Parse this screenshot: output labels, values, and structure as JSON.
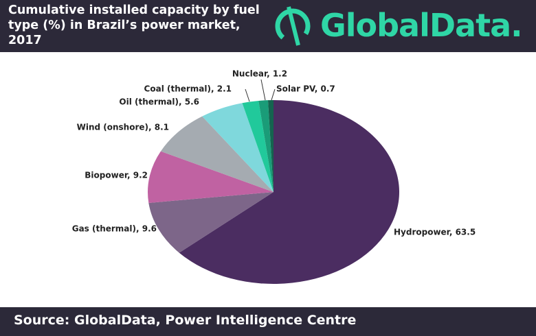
{
  "header": {
    "title": "Cumulative installed capacity by fuel type (%) in Brazil’s power market, 2017",
    "logo": "GlobalData."
  },
  "chart_data": {
    "type": "pie",
    "values": [
      63.5,
      9.6,
      9.2,
      8.1,
      5.6,
      2.1,
      1.2,
      0.7
    ],
    "value_labels": [
      "Hydropower, 63.5",
      "Gas (thermal), 9.6",
      "Biopower, 9.2",
      "Wind (onshore), 8.1",
      "Oil (thermal), 5.6",
      "Coal (thermal), 2.1",
      "Nuclear, 1.2",
      "Solar PV, 0.7"
    ],
    "colors": [
      "#4b2d61",
      "#7d6689",
      "#c062a2",
      "#a5abb1",
      "#7fd8dc",
      "#21c99b",
      "#1a9c78",
      "#14644f"
    ]
  },
  "footer": {
    "source": "Source: GlobalData, Power Intelligence Centre"
  }
}
